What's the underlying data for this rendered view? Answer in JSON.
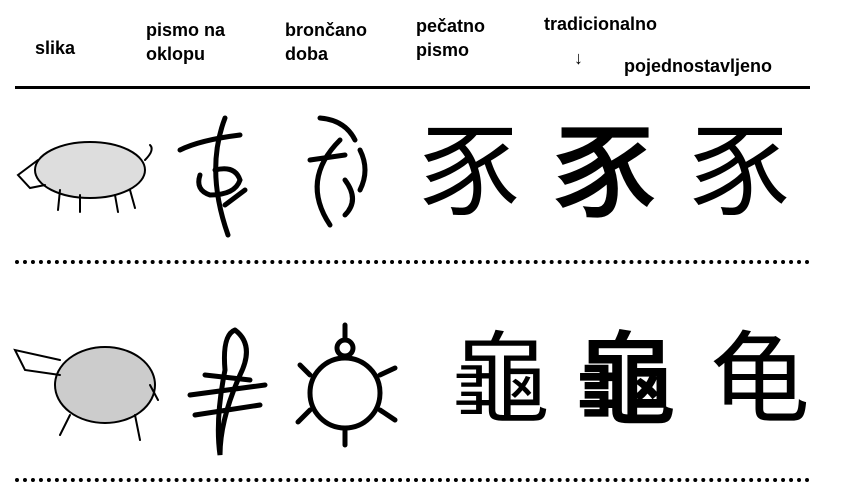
{
  "headers": {
    "picture": "slika",
    "oracle_bone": "pismo na oklopu",
    "bronze": "brončano doba",
    "seal": "pečatno pismo",
    "traditional": "tradicionalno",
    "arrow": "↓",
    "simplified": "pojednostavljeno"
  },
  "rows": [
    {
      "seal": "豕",
      "traditional": "豕",
      "simplified": "豕"
    },
    {
      "seal": "龜",
      "traditional": "龜",
      "simplified": "龟"
    }
  ]
}
